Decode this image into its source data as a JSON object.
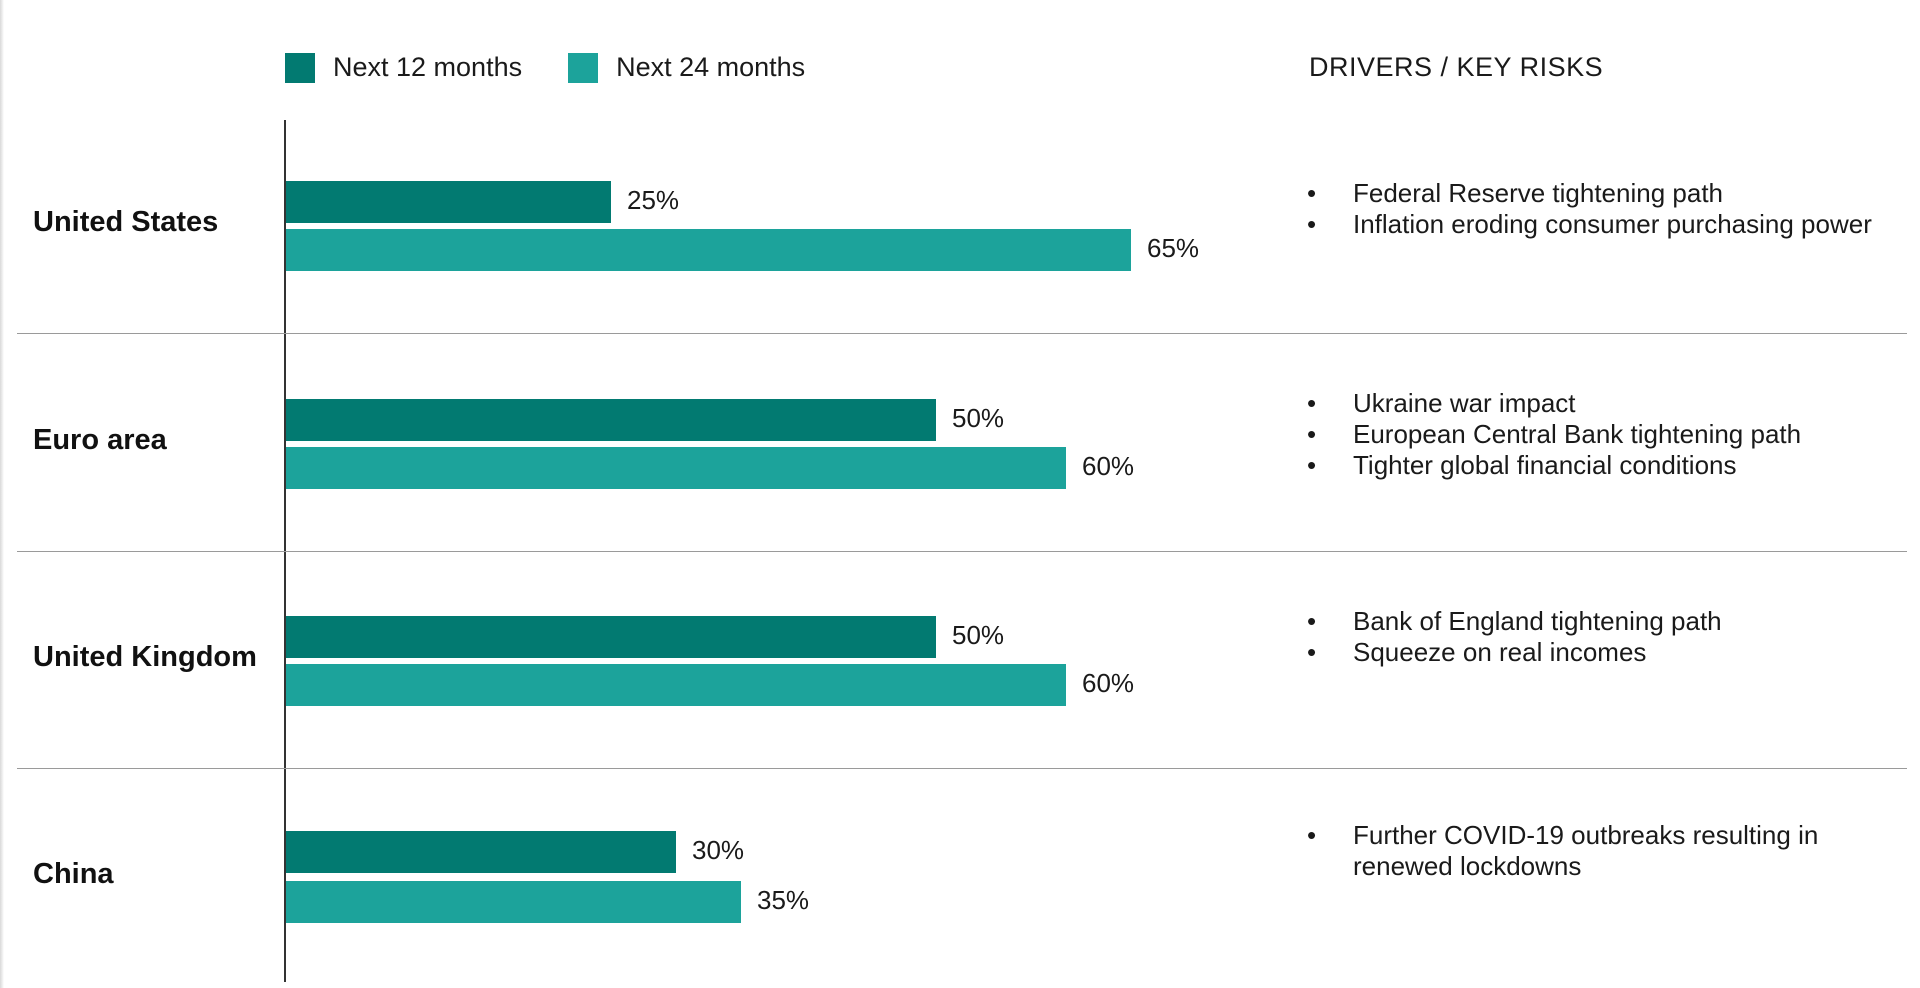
{
  "colors": {
    "next_12": "#027a71",
    "next_24": "#1ca39b"
  },
  "legend": {
    "next_12_label": "Next 12 months",
    "next_24_label": "Next 24 months"
  },
  "risks_heading": "DRIVERS / KEY RISKS",
  "chart_data": {
    "type": "bar",
    "orientation": "horizontal",
    "categories": [
      "United States",
      "Euro area",
      "United Kingdom",
      "China"
    ],
    "series": [
      {
        "name": "Next 12 months",
        "values": [
          25,
          50,
          50,
          30
        ],
        "labels": [
          "25%",
          "50%",
          "50%",
          "30%"
        ]
      },
      {
        "name": "Next 24 months",
        "values": [
          65,
          60,
          60,
          35
        ],
        "labels": [
          "65%",
          "60%",
          "60%",
          "35%"
        ]
      }
    ],
    "xlim": [
      0,
      100
    ],
    "legend_position": "top-left",
    "grid": false
  },
  "rows": [
    {
      "country": "United States",
      "risks": [
        "Federal Reserve tightening path",
        "Inflation eroding consumer purchasing power"
      ]
    },
    {
      "country": "Euro area",
      "risks": [
        "Ukraine war impact",
        "European Central Bank tightening path",
        "Tighter global financial conditions"
      ]
    },
    {
      "country": "United Kingdom",
      "risks": [
        "Bank of England tightening path",
        "Squeeze on real incomes"
      ]
    },
    {
      "country": "China",
      "risks": [
        "Further COVID-19 outbreaks resulting in renewed lockdowns"
      ]
    }
  ]
}
